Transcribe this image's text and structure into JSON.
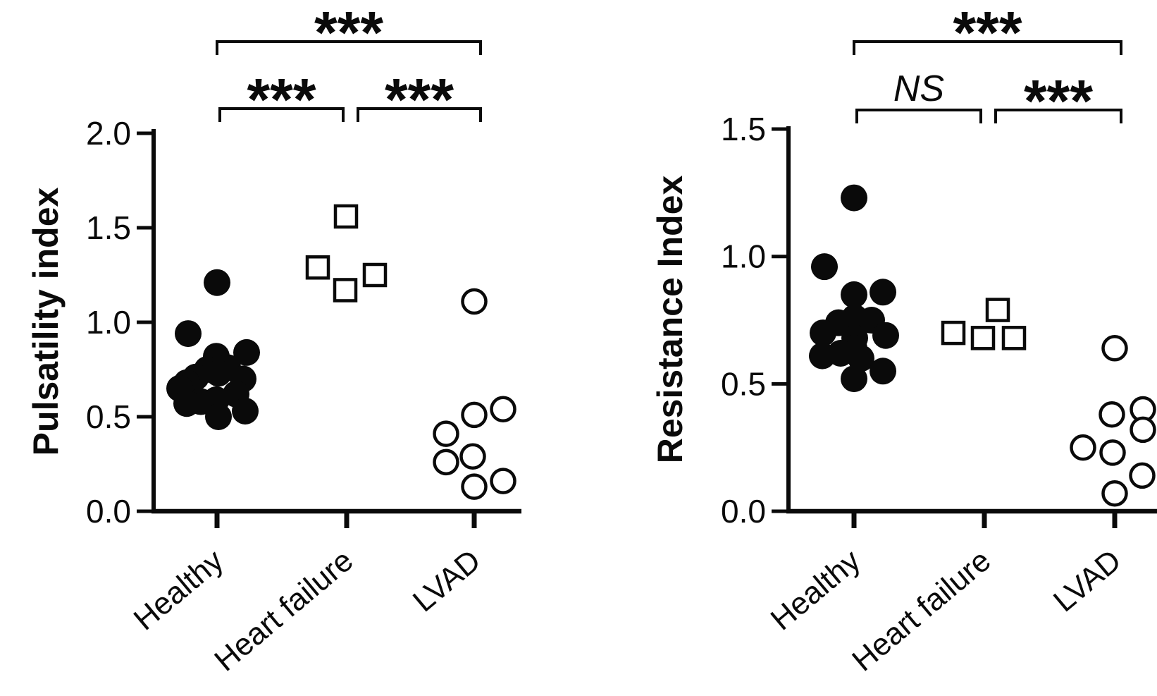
{
  "figure": {
    "background": "#ffffff",
    "ink": "#0a0a0a"
  },
  "chart_data": [
    {
      "type": "scatter",
      "title": "Pulsatility index",
      "ylabel": "Pulsatility index",
      "categories": [
        "Healthy",
        "Heart failure",
        "LVAD"
      ],
      "ylim": [
        0.0,
        2.0
      ],
      "yticks": [
        0.0,
        0.5,
        1.0,
        1.5,
        2.0
      ],
      "grid": false,
      "legend": "none",
      "series": [
        {
          "name": "Healthy",
          "marker": "filled-circle",
          "points": [
            {
              "dx": 0,
              "y": 1.21
            },
            {
              "dx": -41,
              "y": 0.94
            },
            {
              "dx": 42,
              "y": 0.84
            },
            {
              "dx": -1,
              "y": 0.82
            },
            {
              "dx": 15,
              "y": 0.76
            },
            {
              "dx": -14,
              "y": 0.75
            },
            {
              "dx": 2,
              "y": 0.73
            },
            {
              "dx": -30,
              "y": 0.71
            },
            {
              "dx": 37,
              "y": 0.7
            },
            {
              "dx": -43,
              "y": 0.68
            },
            {
              "dx": -53,
              "y": 0.65
            },
            {
              "dx": 27,
              "y": 0.62
            },
            {
              "dx": -1,
              "y": 0.59
            },
            {
              "dx": -23,
              "y": 0.58
            },
            {
              "dx": -43,
              "y": 0.57
            },
            {
              "dx": 40,
              "y": 0.53
            },
            {
              "dx": 2,
              "y": 0.5
            }
          ]
        },
        {
          "name": "Heart failure",
          "marker": "open-square",
          "points": [
            {
              "dx": -1,
              "y": 1.56
            },
            {
              "dx": -41,
              "y": 1.29
            },
            {
              "dx": 40,
              "y": 1.25
            },
            {
              "dx": -2,
              "y": 1.17
            }
          ]
        },
        {
          "name": "LVAD",
          "marker": "open-circle",
          "points": [
            {
              "dx": 0,
              "y": 1.11
            },
            {
              "dx": 41,
              "y": 0.54
            },
            {
              "dx": 0,
              "y": 0.51
            },
            {
              "dx": -40,
              "y": 0.41
            },
            {
              "dx": -2,
              "y": 0.29
            },
            {
              "dx": -40,
              "y": 0.26
            },
            {
              "dx": 41,
              "y": 0.16
            },
            {
              "dx": 0,
              "y": 0.13
            }
          ]
        }
      ],
      "significance": [
        {
          "pair": [
            0,
            2
          ],
          "label": "***",
          "level": "outer"
        },
        {
          "pair": [
            0,
            1
          ],
          "label": "***",
          "level": "inner"
        },
        {
          "pair": [
            1,
            2
          ],
          "label": "***",
          "level": "inner"
        }
      ]
    },
    {
      "type": "scatter",
      "title": "Resistance Index",
      "ylabel": "Resistance Index",
      "categories": [
        "Healthy",
        "Heart failure",
        "LVAD"
      ],
      "ylim": [
        0.0,
        1.5
      ],
      "yticks": [
        0.0,
        0.5,
        1.0,
        1.5
      ],
      "grid": false,
      "legend": "none",
      "series": [
        {
          "name": "Healthy",
          "marker": "filled-circle",
          "points": [
            {
              "dx": 0,
              "y": 1.23
            },
            {
              "dx": -42,
              "y": 0.96
            },
            {
              "dx": 41,
              "y": 0.86
            },
            {
              "dx": 0,
              "y": 0.85
            },
            {
              "dx": 1,
              "y": 0.76
            },
            {
              "dx": 25,
              "y": 0.75
            },
            {
              "dx": -22,
              "y": 0.74
            },
            {
              "dx": -44,
              "y": 0.7
            },
            {
              "dx": 45,
              "y": 0.69
            },
            {
              "dx": 1,
              "y": 0.68
            },
            {
              "dx": 0,
              "y": 0.64
            },
            {
              "dx": -19,
              "y": 0.62
            },
            {
              "dx": -45,
              "y": 0.61
            },
            {
              "dx": 10,
              "y": 0.6
            },
            {
              "dx": 41,
              "y": 0.55
            },
            {
              "dx": 0,
              "y": 0.52
            }
          ]
        },
        {
          "name": "Heart failure",
          "marker": "open-square",
          "points": [
            {
              "dx": 19,
              "y": 0.79
            },
            {
              "dx": -44,
              "y": 0.7
            },
            {
              "dx": -2,
              "y": 0.68
            },
            {
              "dx": 42,
              "y": 0.68
            }
          ]
        },
        {
          "name": "LVAD",
          "marker": "open-circle",
          "points": [
            {
              "dx": 0,
              "y": 0.64
            },
            {
              "dx": 40,
              "y": 0.4
            },
            {
              "dx": -4,
              "y": 0.38
            },
            {
              "dx": 40,
              "y": 0.32
            },
            {
              "dx": -45,
              "y": 0.25
            },
            {
              "dx": -3,
              "y": 0.23
            },
            {
              "dx": 39,
              "y": 0.14
            },
            {
              "dx": 0,
              "y": 0.07
            }
          ]
        }
      ],
      "significance": [
        {
          "pair": [
            0,
            2
          ],
          "label": "***",
          "level": "outer"
        },
        {
          "pair": [
            0,
            1
          ],
          "label": "NS",
          "level": "inner"
        },
        {
          "pair": [
            1,
            2
          ],
          "label": "***",
          "level": "inner"
        }
      ]
    }
  ]
}
